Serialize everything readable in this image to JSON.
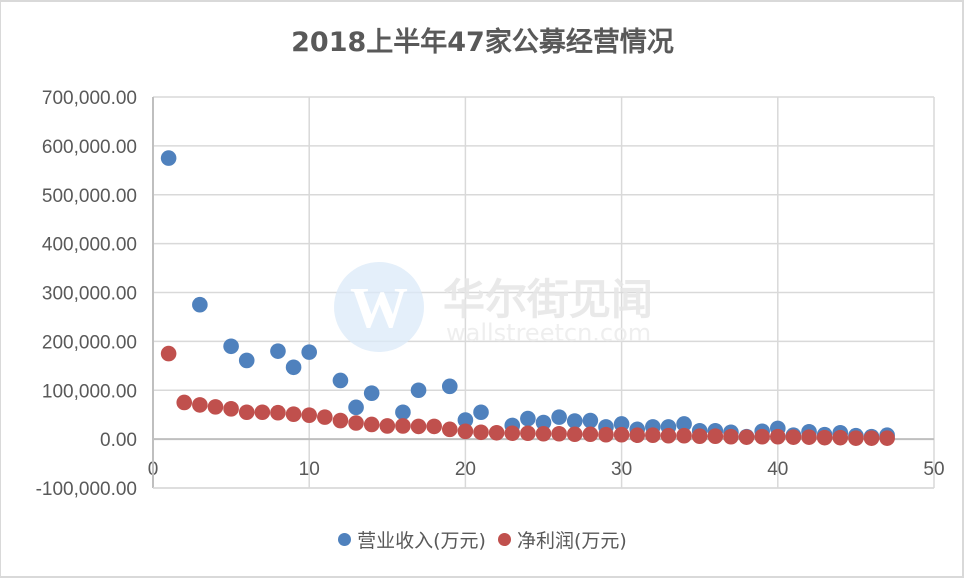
{
  "chart_data": {
    "type": "scatter",
    "title": "2018上半年47家公募经营情况",
    "xlabel": "",
    "ylabel": "",
    "xlim": [
      0,
      50
    ],
    "ylim": [
      -100000,
      700000
    ],
    "x_ticks": [
      "0",
      "10",
      "20",
      "30",
      "40",
      "50"
    ],
    "y_ticks": [
      "700,000.00",
      "600,000.00",
      "500,000.00",
      "400,000.00",
      "300,000.00",
      "200,000.00",
      "100,000.00",
      "0.00",
      "-100,000.00"
    ],
    "grid": true,
    "legend_position": "bottom",
    "x": [
      1,
      2,
      3,
      4,
      5,
      6,
      7,
      8,
      9,
      10,
      11,
      12,
      13,
      14,
      15,
      16,
      17,
      18,
      19,
      20,
      21,
      22,
      23,
      24,
      25,
      26,
      27,
      28,
      29,
      30,
      31,
      32,
      33,
      34,
      35,
      36,
      37,
      38,
      39,
      40,
      41,
      42,
      43,
      44,
      45,
      46,
      47
    ],
    "series": [
      {
        "name": "营业收入(万元)",
        "color": "#4f81bd",
        "values": [
          575000,
          null,
          275000,
          null,
          190000,
          161000,
          null,
          180000,
          147000,
          178000,
          null,
          120000,
          65000,
          94000,
          null,
          55000,
          100000,
          null,
          108000,
          39000,
          55000,
          null,
          28000,
          42000,
          34000,
          45000,
          37000,
          38000,
          25000,
          31000,
          20000,
          25000,
          25000,
          31000,
          17000,
          17000,
          14000,
          5000,
          16000,
          22000,
          8000,
          15000,
          9000,
          13000,
          7000,
          5000,
          8000
        ]
      },
      {
        "name": "净利润(万元)",
        "color": "#c0504d",
        "values": [
          175000,
          75000,
          70000,
          66000,
          62000,
          55000,
          55000,
          54000,
          51000,
          49000,
          45000,
          38000,
          33000,
          30000,
          27000,
          27000,
          26000,
          26000,
          20000,
          16000,
          14000,
          13000,
          12000,
          12000,
          11000,
          11000,
          10000,
          10000,
          9000,
          9000,
          8000,
          8000,
          7000,
          7000,
          6000,
          6000,
          5000,
          4000,
          5000,
          5000,
          4000,
          4000,
          3000,
          3000,
          2000,
          2000,
          2000
        ]
      }
    ]
  },
  "watermark": {
    "logo_letter": "W",
    "cn_text": "华尔街见闻",
    "en_text": "wallstreetcn.com"
  }
}
